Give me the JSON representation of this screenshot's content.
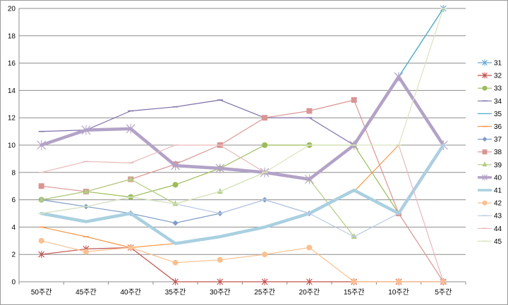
{
  "chart_data": {
    "type": "line",
    "title": "",
    "xlabel": "",
    "ylabel": "",
    "categories": [
      "50주간",
      "45주간",
      "40주간",
      "35주간",
      "30주간",
      "25주간",
      "20주간",
      "15주간",
      "10주간",
      "5주간"
    ],
    "ylim": [
      0,
      20
    ],
    "yticks": [
      "0",
      "2",
      "4",
      "6",
      "8",
      "10",
      "12",
      "14",
      "16",
      "18",
      "20"
    ],
    "grid": true,
    "legend_position": "right",
    "series": [
      {
        "name": "31",
        "color": "#6aa8d0",
        "marker": "x",
        "width": 1.2,
        "values": [
          null,
          null,
          null,
          null,
          null,
          null,
          null,
          null,
          15,
          20
        ]
      },
      {
        "name": "32",
        "color": "#c0504d",
        "marker": "x",
        "width": 1.2,
        "values": [
          2,
          2.4,
          2.5,
          0,
          0,
          0,
          0,
          0,
          0,
          0
        ]
      },
      {
        "name": "33",
        "color": "#9bbb59",
        "marker": "circle",
        "width": 1.2,
        "values": [
          6,
          6.6,
          6.2,
          7.1,
          8.3,
          10,
          10,
          10,
          5,
          null
        ]
      },
      {
        "name": "34",
        "color": "#7e6fa8",
        "marker": "dash",
        "width": 1.2,
        "values": [
          11,
          11.1,
          12.5,
          12.8,
          13.3,
          12,
          12,
          10,
          null,
          null
        ]
      },
      {
        "name": "35",
        "color": "#4bacc6",
        "marker": "none",
        "width": 1.2,
        "values": [
          null,
          null,
          null,
          null,
          null,
          null,
          null,
          null,
          15,
          20
        ]
      },
      {
        "name": "36",
        "color": "#f79646",
        "marker": "dash",
        "width": 1.2,
        "values": [
          4,
          3.3,
          2.5,
          2.8,
          null,
          null,
          null,
          6.6,
          10,
          null
        ]
      },
      {
        "name": "37",
        "color": "#7f9cc8",
        "marker": "diamond",
        "width": 1.2,
        "values": [
          6,
          5.5,
          5,
          4.3,
          5,
          6,
          5,
          null,
          null,
          null
        ]
      },
      {
        "name": "38",
        "color": "#d99694",
        "marker": "square",
        "width": 1.2,
        "values": [
          7,
          6.6,
          7.5,
          8.6,
          10,
          12,
          12.5,
          13.3,
          5,
          0
        ]
      },
      {
        "name": "39",
        "color": "#b3cc82",
        "marker": "triangle",
        "width": 1.2,
        "values": [
          6,
          6.6,
          7.5,
          5.7,
          6.6,
          8,
          7.5,
          3.3,
          null,
          null
        ]
      },
      {
        "name": "40",
        "color": "#b3a2c7",
        "marker": "x",
        "width": 4.5,
        "values": [
          10,
          11.1,
          11.2,
          8.5,
          8.3,
          8,
          7.5,
          10,
          15,
          10
        ]
      },
      {
        "name": "41",
        "color": "#a9d0e0",
        "marker": "none",
        "width": 4.5,
        "values": [
          5,
          4.4,
          5,
          2.8,
          3.3,
          4,
          5,
          6.7,
          5,
          10
        ]
      },
      {
        "name": "42",
        "color": "#fac090",
        "marker": "circle",
        "width": 1.2,
        "values": [
          3,
          2.2,
          2.5,
          1.4,
          1.6,
          2,
          2.5,
          0,
          0,
          0
        ]
      },
      {
        "name": "43",
        "color": "#b9c9e4",
        "marker": "dash",
        "width": 1.2,
        "values": [
          5,
          5.5,
          6.2,
          5.7,
          5,
          6,
          5,
          3.3,
          5,
          10
        ]
      },
      {
        "name": "44",
        "color": "#e6b9b8",
        "marker": "dash",
        "width": 1.2,
        "values": [
          8,
          8.8,
          8.7,
          10,
          10,
          8,
          null,
          null,
          10,
          0
        ]
      },
      {
        "name": "45",
        "color": "#d7e4bd",
        "marker": "dash",
        "width": 1.2,
        "values": [
          5,
          5.5,
          6.2,
          5.7,
          6.6,
          8,
          10,
          10,
          10,
          20
        ]
      }
    ]
  }
}
